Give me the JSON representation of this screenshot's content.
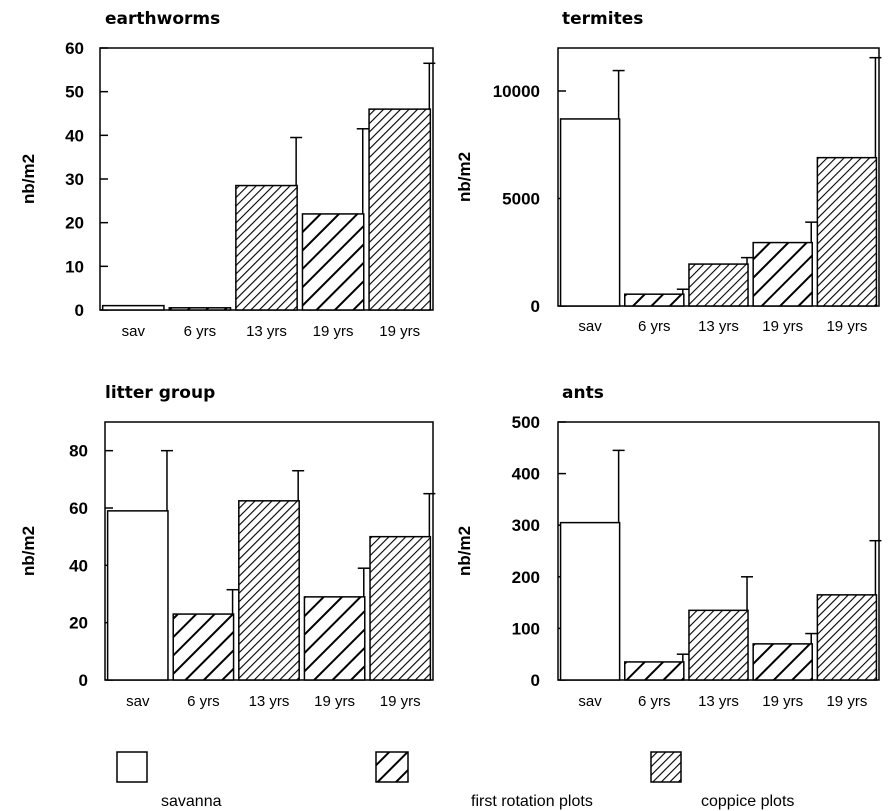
{
  "chart_data": [
    {
      "type": "bar",
      "title": "earthworms",
      "xlabel": "",
      "ylabel": "nb/m2",
      "ylim": [
        0,
        60
      ],
      "yticks": [
        0,
        10,
        20,
        30,
        40,
        50,
        60
      ],
      "categories": [
        "sav",
        "6 yrs",
        "13 yrs",
        "19 yrs",
        "19 yrs"
      ],
      "plot_types": [
        "savanna",
        "first rotation plots",
        "coppice plots",
        "first rotation plots",
        "coppice plots"
      ],
      "values": [
        1,
        0.5,
        28.5,
        22,
        46
      ],
      "error_upper": [
        1,
        0.5,
        39.5,
        41.5,
        56.5
      ]
    },
    {
      "type": "bar",
      "title": "termites",
      "xlabel": "",
      "ylabel": "nb/m2",
      "ylim": [
        0,
        12000
      ],
      "yticks": [
        0,
        5000,
        10000
      ],
      "categories": [
        "sav",
        "6 yrs",
        "13 yrs",
        "19 yrs",
        "19 yrs"
      ],
      "plot_types": [
        "savanna",
        "first rotation plots",
        "coppice plots",
        "first rotation plots",
        "coppice plots"
      ],
      "values": [
        8700,
        550,
        1950,
        2950,
        6900
      ],
      "error_upper": [
        10950,
        780,
        2250,
        3900,
        11550
      ]
    },
    {
      "type": "bar",
      "title": "litter group",
      "xlabel": "",
      "ylabel": "nb/m2",
      "ylim": [
        0,
        90
      ],
      "yticks": [
        0,
        20,
        40,
        60,
        80
      ],
      "categories": [
        "sav",
        "6 yrs",
        "13 yrs",
        "19 yrs",
        "19 yrs"
      ],
      "plot_types": [
        "savanna",
        "first rotation plots",
        "coppice plots",
        "first rotation plots",
        "coppice plots"
      ],
      "values": [
        59,
        23,
        62.5,
        29,
        50
      ],
      "error_upper": [
        80,
        31.5,
        73,
        39,
        65
      ]
    },
    {
      "type": "bar",
      "title": "ants",
      "xlabel": "",
      "ylabel": "nb/m2",
      "ylim": [
        0,
        500
      ],
      "yticks": [
        0,
        100,
        200,
        300,
        400,
        500
      ],
      "categories": [
        "sav",
        "6 yrs",
        "13 yrs",
        "19 yrs",
        "19 yrs"
      ],
      "plot_types": [
        "savanna",
        "first rotation plots",
        "coppice plots",
        "first rotation plots",
        "coppice plots"
      ],
      "values": [
        305,
        35,
        135,
        70,
        165
      ],
      "error_upper": [
        445,
        50,
        200,
        90,
        270
      ]
    }
  ],
  "legend": {
    "placement": "bottom",
    "items": [
      {
        "key": "savanna",
        "label": "savanna",
        "fill": "none"
      },
      {
        "key": "first rotation plots",
        "label": "first rotation plots",
        "fill": "wide diagonal hatch"
      },
      {
        "key": "coppice plots",
        "label": "coppice plots",
        "fill": "dense diagonal hatch"
      }
    ]
  },
  "colors": {
    "ink": "#000000",
    "background": "#ffffff"
  }
}
